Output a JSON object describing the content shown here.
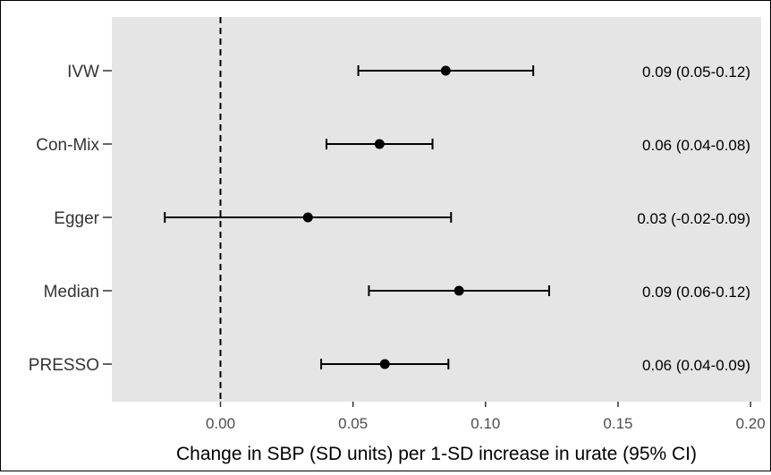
{
  "chart_data": {
    "type": "forest",
    "xlabel": "Change in SBP (SD units) per 1-SD increase in urate (95% CI)",
    "xlim": [
      -0.041,
      0.204
    ],
    "xticks": [
      0.0,
      0.05,
      0.1,
      0.15,
      0.2
    ],
    "xtick_labels": [
      "0.00",
      "0.05",
      "0.10",
      "0.15",
      "0.20"
    ],
    "reference_line": 0,
    "grid": false,
    "colors": {
      "panel": "#e5e5e5",
      "point": "#000000",
      "reference": "#000000"
    },
    "rows": [
      {
        "label": "IVW",
        "estimate": 0.085,
        "lower": 0.052,
        "upper": 0.118,
        "ci_text": "0.09 (0.05-0.12)"
      },
      {
        "label": "Con-Mix",
        "estimate": 0.06,
        "lower": 0.04,
        "upper": 0.08,
        "ci_text": "0.06 (0.04-0.08)"
      },
      {
        "label": "Egger",
        "estimate": 0.033,
        "lower": -0.021,
        "upper": 0.087,
        "ci_text": "0.03 (-0.02-0.09)"
      },
      {
        "label": "Median",
        "estimate": 0.09,
        "lower": 0.056,
        "upper": 0.124,
        "ci_text": "0.09 (0.06-0.12)"
      },
      {
        "label": "PRESSO",
        "estimate": 0.062,
        "lower": 0.038,
        "upper": 0.086,
        "ci_text": "0.06 (0.04-0.09)"
      }
    ]
  }
}
